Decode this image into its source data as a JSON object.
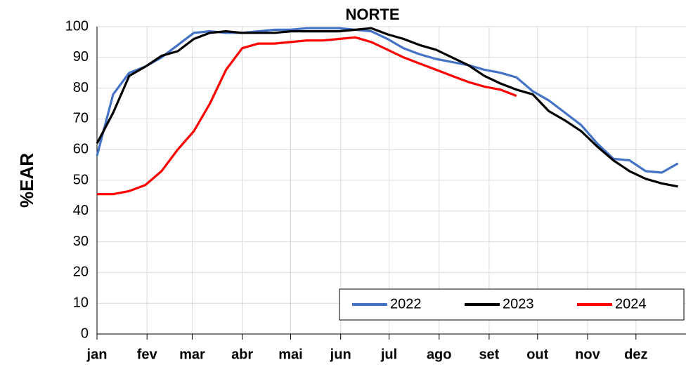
{
  "chart_data": {
    "type": "line",
    "title": "NORTE",
    "y_label": "%EAR",
    "x": [
      0,
      10,
      20,
      30,
      40,
      50,
      60,
      70,
      80,
      90,
      100,
      110,
      120,
      130,
      140,
      150,
      160,
      170,
      180,
      190,
      200,
      210,
      220,
      230,
      240,
      250,
      260,
      270,
      280,
      290,
      300,
      310,
      320,
      330,
      340,
      350,
      360
    ],
    "xlim": [
      0,
      365
    ],
    "xticks": [
      {
        "value": 0,
        "label": "jan"
      },
      {
        "value": 31,
        "label": "fev"
      },
      {
        "value": 59,
        "label": "mar"
      },
      {
        "value": 90,
        "label": "abr"
      },
      {
        "value": 120,
        "label": "mai"
      },
      {
        "value": 151,
        "label": "jun"
      },
      {
        "value": 181,
        "label": "jul"
      },
      {
        "value": 212,
        "label": "ago"
      },
      {
        "value": 243,
        "label": "set"
      },
      {
        "value": 273,
        "label": "out"
      },
      {
        "value": 304,
        "label": "nov"
      },
      {
        "value": 334,
        "label": "dez"
      }
    ],
    "ylim": [
      0,
      100
    ],
    "yticks": [
      0,
      10,
      20,
      30,
      40,
      50,
      60,
      70,
      80,
      90,
      100
    ],
    "grid": true,
    "legend": "lower right",
    "series": [
      {
        "name": "2022",
        "color": "#4472c4",
        "values": [
          58,
          78,
          85,
          87,
          90,
          94,
          98,
          98.5,
          98,
          98,
          98.5,
          99,
          99,
          99.5,
          99.5,
          99.5,
          99,
          98.5,
          96,
          93,
          91,
          89.5,
          88.5,
          87.5,
          86,
          85,
          83.5,
          79,
          76,
          72,
          68,
          62,
          57,
          56.5,
          53,
          52.5,
          55.5
        ]
      },
      {
        "name": "2023",
        "color": "#000000",
        "values": [
          62,
          72,
          84,
          87,
          90.5,
          92,
          96,
          98,
          98.5,
          98,
          98,
          98,
          98.5,
          98.5,
          98.5,
          98.5,
          99,
          99.5,
          97.5,
          96,
          94,
          92.5,
          90,
          87.5,
          84,
          81.5,
          79.5,
          78,
          72.5,
          69.5,
          66,
          61,
          56.5,
          53,
          50.5,
          49,
          48
        ]
      },
      {
        "name": "2024",
        "color": "#ff0000",
        "values": [
          45.5,
          45.5,
          46.5,
          48.5,
          53,
          60,
          66,
          75,
          86,
          93,
          94.5,
          94.5,
          95,
          95.5,
          95.5,
          96,
          96.5,
          95,
          92.5,
          90,
          88,
          86,
          84,
          82,
          80.5,
          79.5,
          77.5,
          null,
          null,
          null,
          null,
          null,
          null,
          null,
          null,
          null,
          null
        ]
      }
    ]
  }
}
